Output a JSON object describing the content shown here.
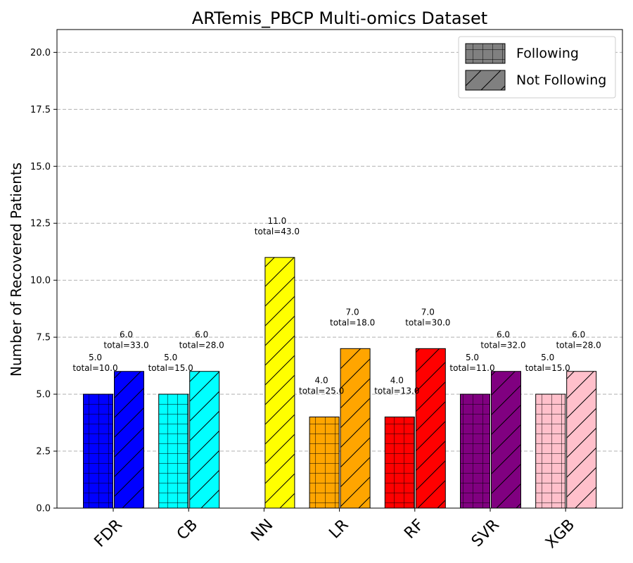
{
  "chart_data": {
    "type": "bar",
    "title": "ARTemis_PBCP Multi-omics Dataset",
    "xlabel": "",
    "ylabel": "Number of Recovered Patients",
    "ylim": [
      0,
      21
    ],
    "yticks": [
      "0.0",
      "2.5",
      "5.0",
      "7.5",
      "10.0",
      "12.5",
      "15.0",
      "17.5",
      "20.0"
    ],
    "ytick_values": [
      0,
      2.5,
      5,
      7.5,
      10,
      12.5,
      15,
      17.5,
      20
    ],
    "grid": "y-dashed",
    "legend_position": "top-right",
    "categories": [
      "FDR",
      "CB",
      "NN",
      "LR",
      "RF",
      "SVR",
      "XGB"
    ],
    "colors": [
      "#0000ff",
      "#00ffff",
      "#ffff00",
      "#ffa500",
      "#ff0000",
      "#800080",
      "#ffc0cb"
    ],
    "series": [
      {
        "name": "Following",
        "hatch": "grid",
        "values": [
          5,
          5,
          null,
          4,
          4,
          5,
          5
        ],
        "labels": [
          "5.0",
          "5.0",
          null,
          "4.0",
          "4.0",
          "5.0",
          "5.0"
        ],
        "totals": [
          "total=10.0",
          "total=15.0",
          null,
          "total=25.0",
          "total=13.0",
          "total=11.0",
          "total=15.0"
        ]
      },
      {
        "name": "Not Following",
        "hatch": "diagonal",
        "values": [
          6,
          6,
          11,
          7,
          7,
          6,
          6
        ],
        "labels": [
          "6.0",
          "6.0",
          "11.0",
          "7.0",
          "7.0",
          "6.0",
          "6.0"
        ],
        "totals": [
          "total=33.0",
          "total=28.0",
          "total=43.0",
          "total=18.0",
          "total=30.0",
          "total=32.0",
          "total=28.0"
        ]
      }
    ],
    "legend_swatch_color": "#808080"
  }
}
